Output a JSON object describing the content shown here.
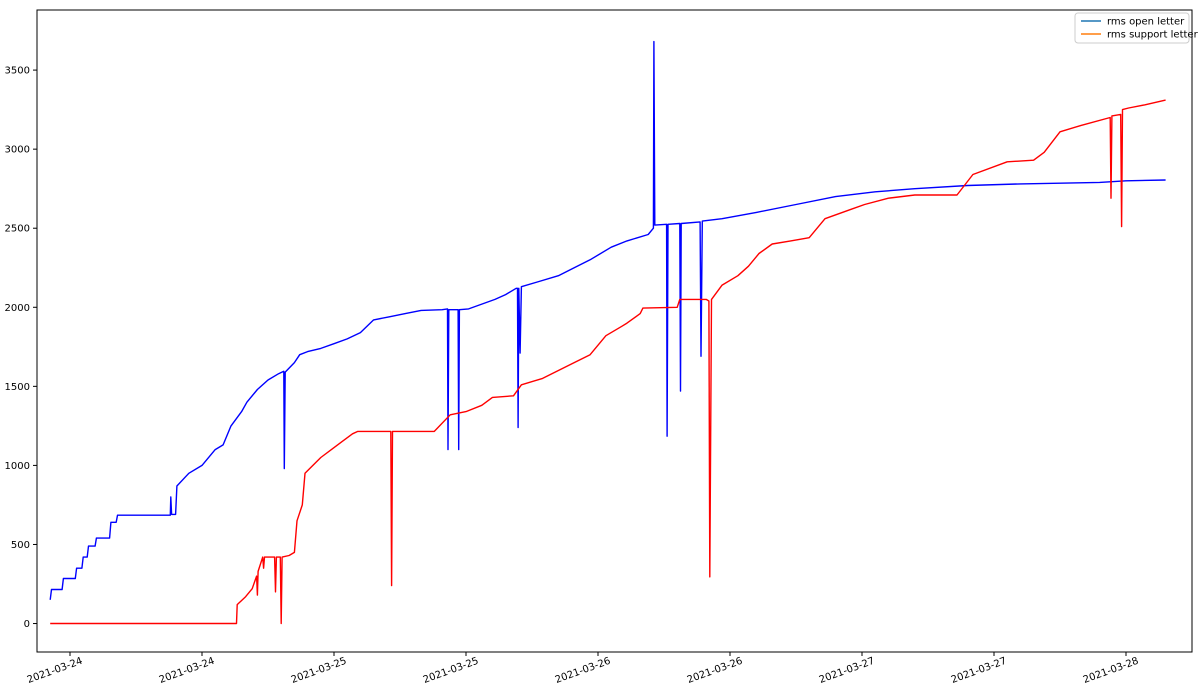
{
  "chart_data": {
    "type": "line",
    "title": "",
    "xlabel": "",
    "ylabel": "",
    "ylim": [
      -180,
      3880
    ],
    "xlim": [
      "2021-03-23T21:00",
      "2021-03-28T06:00"
    ],
    "grid": false,
    "legend_position": "top-right",
    "x_tick_labels": [
      "2021-03-24",
      "2021-03-24",
      "2021-03-25",
      "2021-03-25",
      "2021-03-26",
      "2021-03-26",
      "2021-03-27",
      "2021-03-27",
      "2021-03-28"
    ],
    "x_ticks": [
      "2021-03-24T00:00",
      "2021-03-24T12:00",
      "2021-03-25T00:00",
      "2021-03-25T12:00",
      "2021-03-26T00:00",
      "2021-03-26T12:00",
      "2021-03-27T00:00",
      "2021-03-27T12:00",
      "2021-03-28T00:00"
    ],
    "y_tick_labels": [
      "0",
      "500",
      "1000",
      "1500",
      "2000",
      "2500",
      "3000",
      "3500"
    ],
    "y_ticks": [
      0,
      500,
      1000,
      1500,
      2000,
      2500,
      3000,
      3500
    ],
    "series": [
      {
        "name": "rms open letter",
        "color": "#0000ff",
        "legend_color": "#1f77b4",
        "points": [
          [
            "2021-03-23T22:12",
            150
          ],
          [
            "2021-03-23T22:19",
            215
          ],
          [
            "2021-03-23T23:17",
            215
          ],
          [
            "2021-03-23T23:24",
            285
          ],
          [
            "2021-03-24T00:29",
            285
          ],
          [
            "2021-03-24T00:36",
            350
          ],
          [
            "2021-03-24T01:05",
            350
          ],
          [
            "2021-03-24T01:12",
            420
          ],
          [
            "2021-03-24T01:34",
            420
          ],
          [
            "2021-03-24T01:41",
            490
          ],
          [
            "2021-03-24T02:17",
            490
          ],
          [
            "2021-03-24T02:24",
            540
          ],
          [
            "2021-03-24T03:36",
            540
          ],
          [
            "2021-03-24T03:43",
            640
          ],
          [
            "2021-03-24T04:12",
            640
          ],
          [
            "2021-03-24T04:19",
            685
          ],
          [
            "2021-03-24T09:07",
            685
          ],
          [
            "2021-03-24T09:10",
            800
          ],
          [
            "2021-03-24T09:14",
            690
          ],
          [
            "2021-03-24T09:36",
            690
          ],
          [
            "2021-03-24T09:43",
            870
          ],
          [
            "2021-03-24T10:48",
            950
          ],
          [
            "2021-03-24T12:00",
            1000
          ],
          [
            "2021-03-24T12:43",
            1060
          ],
          [
            "2021-03-24T13:12",
            1100
          ],
          [
            "2021-03-24T13:55",
            1130
          ],
          [
            "2021-03-24T14:38",
            1250
          ],
          [
            "2021-03-24T15:36",
            1340
          ],
          [
            "2021-03-24T16:05",
            1400
          ],
          [
            "2021-03-24T17:02",
            1480
          ],
          [
            "2021-03-24T18:00",
            1540
          ],
          [
            "2021-03-24T18:58",
            1580
          ],
          [
            "2021-03-24T19:26",
            1595
          ],
          [
            "2021-03-24T19:29",
            980
          ],
          [
            "2021-03-24T19:34",
            1590
          ],
          [
            "2021-03-24T20:24",
            1650
          ],
          [
            "2021-03-24T20:53",
            1700
          ],
          [
            "2021-03-24T21:36",
            1720
          ],
          [
            "2021-03-24T22:48",
            1740
          ],
          [
            "2021-03-25T00:00",
            1770
          ],
          [
            "2021-03-25T01:12",
            1800
          ],
          [
            "2021-03-25T02:24",
            1840
          ],
          [
            "2021-03-25T03:36",
            1920
          ],
          [
            "2021-03-25T05:02",
            1940
          ],
          [
            "2021-03-25T06:29",
            1960
          ],
          [
            "2021-03-25T07:55",
            1980
          ],
          [
            "2021-03-25T09:50",
            1985
          ],
          [
            "2021-03-25T10:19",
            1990
          ],
          [
            "2021-03-25T10:22",
            1100
          ],
          [
            "2021-03-25T10:26",
            1985
          ],
          [
            "2021-03-25T11:17",
            1985
          ],
          [
            "2021-03-25T11:20",
            1100
          ],
          [
            "2021-03-25T11:24",
            1985
          ],
          [
            "2021-03-25T12:14",
            1990
          ],
          [
            "2021-03-25T13:26",
            2020
          ],
          [
            "2021-03-25T14:38",
            2050
          ],
          [
            "2021-03-25T15:36",
            2080
          ],
          [
            "2021-03-25T16:34",
            2120
          ],
          [
            "2021-03-25T16:41",
            2120
          ],
          [
            "2021-03-25T16:44",
            1240
          ],
          [
            "2021-03-25T16:48",
            2120
          ],
          [
            "2021-03-25T16:55",
            1710
          ],
          [
            "2021-03-25T17:02",
            2130
          ],
          [
            "2021-03-25T18:29",
            2160
          ],
          [
            "2021-03-25T20:24",
            2200
          ],
          [
            "2021-03-25T21:50",
            2250
          ],
          [
            "2021-03-25T23:17",
            2300
          ],
          [
            "2021-03-26T01:12",
            2380
          ],
          [
            "2021-03-26T02:38",
            2420
          ],
          [
            "2021-03-26T04:34",
            2460
          ],
          [
            "2021-03-26T05:02",
            2500
          ],
          [
            "2021-03-26T05:05",
            3680
          ],
          [
            "2021-03-26T05:10",
            2520
          ],
          [
            "2021-03-26T06:14",
            2525
          ],
          [
            "2021-03-26T06:17",
            1185
          ],
          [
            "2021-03-26T06:22",
            2525
          ],
          [
            "2021-03-26T07:26",
            2530
          ],
          [
            "2021-03-26T07:30",
            1470
          ],
          [
            "2021-03-26T07:34",
            2530
          ],
          [
            "2021-03-26T09:17",
            2540
          ],
          [
            "2021-03-26T09:22",
            1690
          ],
          [
            "2021-03-26T09:29",
            2545
          ],
          [
            "2021-03-26T11:17",
            2560
          ],
          [
            "2021-03-26T14:24",
            2600
          ],
          [
            "2021-03-26T18:00",
            2650
          ],
          [
            "2021-03-26T21:36",
            2700
          ],
          [
            "2021-03-27T01:12",
            2730
          ],
          [
            "2021-03-27T04:48",
            2750
          ],
          [
            "2021-03-27T09:36",
            2770
          ],
          [
            "2021-03-27T14:24",
            2780
          ],
          [
            "2021-03-27T21:36",
            2790
          ],
          [
            "2021-03-28T00:00",
            2800
          ],
          [
            "2021-03-28T03:36",
            2805
          ]
        ]
      },
      {
        "name": "rms support letter",
        "color": "#ff0000",
        "legend_color": "#ff7f0e",
        "points": [
          [
            "2021-03-23T22:12",
            0
          ],
          [
            "2021-03-24T15:08",
            0
          ],
          [
            "2021-03-24T15:12",
            120
          ],
          [
            "2021-03-24T15:58",
            170
          ],
          [
            "2021-03-24T16:34",
            220
          ],
          [
            "2021-03-24T16:58",
            300
          ],
          [
            "2021-03-24T17:02",
            180
          ],
          [
            "2021-03-24T17:06",
            330
          ],
          [
            "2021-03-24T17:31",
            420
          ],
          [
            "2021-03-24T17:36",
            350
          ],
          [
            "2021-03-24T17:41",
            420
          ],
          [
            "2021-03-24T18:36",
            420
          ],
          [
            "2021-03-24T18:41",
            200
          ],
          [
            "2021-03-24T18:46",
            420
          ],
          [
            "2021-03-24T19:07",
            420
          ],
          [
            "2021-03-24T19:12",
            0
          ],
          [
            "2021-03-24T19:17",
            420
          ],
          [
            "2021-03-24T19:55",
            430
          ],
          [
            "2021-03-24T20:24",
            450
          ],
          [
            "2021-03-24T20:38",
            650
          ],
          [
            "2021-03-24T21:07",
            750
          ],
          [
            "2021-03-24T21:22",
            950
          ],
          [
            "2021-03-24T22:48",
            1050
          ],
          [
            "2021-03-24T23:46",
            1100
          ],
          [
            "2021-03-25T00:43",
            1150
          ],
          [
            "2021-03-25T01:41",
            1200
          ],
          [
            "2021-03-25T02:10",
            1215
          ],
          [
            "2021-03-25T05:10",
            1215
          ],
          [
            "2021-03-25T05:14",
            240
          ],
          [
            "2021-03-25T05:19",
            1215
          ],
          [
            "2021-03-25T09:07",
            1215
          ],
          [
            "2021-03-25T10:34",
            1320
          ],
          [
            "2021-03-25T12:00",
            1340
          ],
          [
            "2021-03-25T13:26",
            1380
          ],
          [
            "2021-03-25T14:24",
            1430
          ],
          [
            "2021-03-25T16:19",
            1440
          ],
          [
            "2021-03-25T17:02",
            1510
          ],
          [
            "2021-03-25T18:58",
            1550
          ],
          [
            "2021-03-25T20:24",
            1600
          ],
          [
            "2021-03-25T21:50",
            1650
          ],
          [
            "2021-03-25T23:17",
            1700
          ],
          [
            "2021-03-26T00:43",
            1820
          ],
          [
            "2021-03-26T02:10",
            1880
          ],
          [
            "2021-03-26T02:38",
            1900
          ],
          [
            "2021-03-26T03:50",
            1960
          ],
          [
            "2021-03-26T04:05",
            1995
          ],
          [
            "2021-03-26T07:12",
            2000
          ],
          [
            "2021-03-26T07:26",
            2050
          ],
          [
            "2021-03-26T09:50",
            2050
          ],
          [
            "2021-03-26T10:05",
            2040
          ],
          [
            "2021-03-26T10:10",
            295
          ],
          [
            "2021-03-26T10:19",
            2050
          ],
          [
            "2021-03-26T11:17",
            2140
          ],
          [
            "2021-03-26T12:43",
            2200
          ],
          [
            "2021-03-26T13:41",
            2260
          ],
          [
            "2021-03-26T14:38",
            2340
          ],
          [
            "2021-03-26T15:50",
            2400
          ],
          [
            "2021-03-26T17:31",
            2420
          ],
          [
            "2021-03-26T19:12",
            2440
          ],
          [
            "2021-03-26T20:38",
            2560
          ],
          [
            "2021-03-26T23:02",
            2620
          ],
          [
            "2021-03-27T00:14",
            2650
          ],
          [
            "2021-03-27T02:24",
            2690
          ],
          [
            "2021-03-27T04:48",
            2710
          ],
          [
            "2021-03-27T08:38",
            2710
          ],
          [
            "2021-03-27T10:05",
            2840
          ],
          [
            "2021-03-27T13:12",
            2920
          ],
          [
            "2021-03-27T15:36",
            2930
          ],
          [
            "2021-03-27T16:34",
            2980
          ],
          [
            "2021-03-27T18:00",
            3110
          ],
          [
            "2021-03-27T19:55",
            3150
          ],
          [
            "2021-03-27T22:34",
            3200
          ],
          [
            "2021-03-27T22:38",
            2690
          ],
          [
            "2021-03-27T22:43",
            3210
          ],
          [
            "2021-03-27T23:31",
            3220
          ],
          [
            "2021-03-27T23:36",
            2510
          ],
          [
            "2021-03-27T23:41",
            3250
          ],
          [
            "2021-03-28T00:14",
            3260
          ],
          [
            "2021-03-28T01:41",
            3280
          ],
          [
            "2021-03-28T03:36",
            3310
          ]
        ]
      }
    ]
  }
}
